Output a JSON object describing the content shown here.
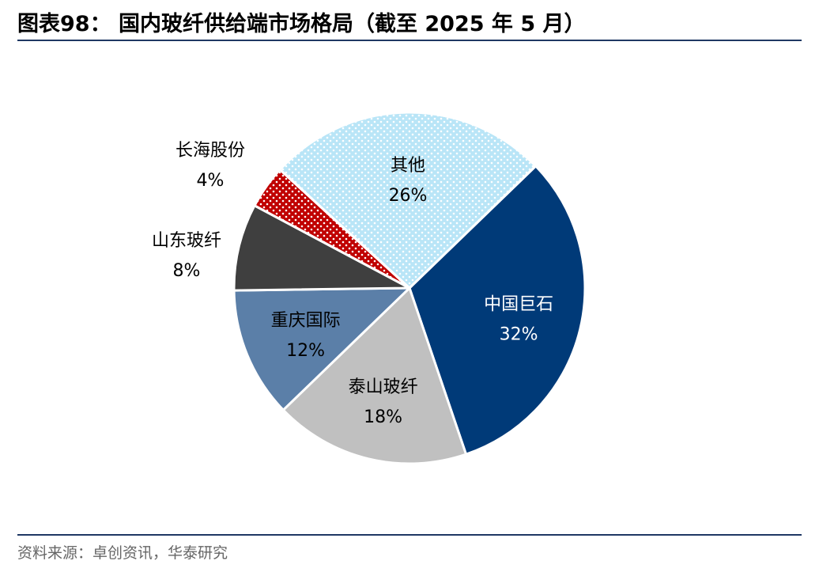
{
  "title": "图表98：  国内玻纤供给端市场格局（截至 2025 年 5 月）",
  "source": "资料来源：卓创资讯，华泰研究",
  "chart_data": {
    "type": "pie",
    "title": "图表98：  国内玻纤供给端市场格局（截至 2025 年 5 月）",
    "slices": [
      {
        "name": "中国巨石",
        "value": 32,
        "label": "32%",
        "color": "#003A78",
        "text_color": "#ffffff",
        "pattern": "solid",
        "label_outside": false
      },
      {
        "name": "泰山玻纤",
        "value": 18,
        "label": "18%",
        "color": "#C0C0C0",
        "text_color": "#000000",
        "pattern": "solid",
        "label_outside": false
      },
      {
        "name": "重庆国际",
        "value": 12,
        "label": "12%",
        "color": "#5B7FA8",
        "text_color": "#000000",
        "pattern": "solid",
        "label_outside": false
      },
      {
        "name": "山东玻纤",
        "value": 8,
        "label": "8%",
        "color": "#3F3F3F",
        "text_color": "#000000",
        "pattern": "solid",
        "label_outside": true
      },
      {
        "name": "长海股份",
        "value": 4,
        "label": "4%",
        "color": "#C00000",
        "text_color": "#000000",
        "pattern": "dots-white",
        "label_outside": true
      },
      {
        "name": "其他",
        "value": 26,
        "label": "26%",
        "color": "#B9E5F7",
        "text_color": "#000000",
        "pattern": "dots-white",
        "label_outside": false
      }
    ]
  }
}
